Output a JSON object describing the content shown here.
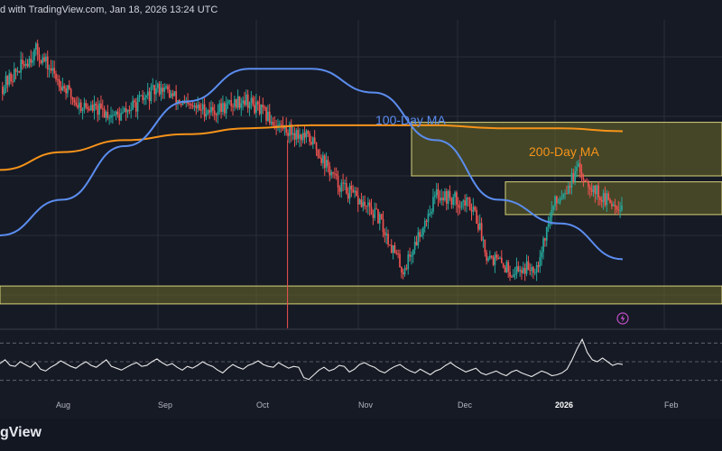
{
  "header": {
    "text": "d with TradingView.com, Jan 18, 2026 13:24 UTC"
  },
  "footer": {
    "logo_text": "gView"
  },
  "colors": {
    "background": "#161a25",
    "bull": "#26a69a",
    "bear": "#ef5350",
    "ma100": "#5b8def",
    "ma200": "#f7931a",
    "zone_fill": "#6b6b2a",
    "zone_stroke": "#d8d27a",
    "rsi_line": "#e8e8e8",
    "grid": "#2a2e39"
  },
  "icons": {
    "lightning": "lightning-icon"
  },
  "chart_data": [
    {
      "type": "candlestick",
      "x_axis": [
        "Aug",
        "Sep",
        "Oct",
        "Nov",
        "Dec",
        "2026",
        "Feb"
      ],
      "annotations": [
        "100-Day MA",
        "200-Day MA"
      ],
      "series": [
        {
          "name": "100-Day MA",
          "values": [
            0.3,
            0.42,
            0.6,
            0.75,
            0.86,
            0.86,
            0.78,
            0.62,
            0.42,
            0.34,
            0.22
          ]
        },
        {
          "name": "200-Day MA",
          "values": [
            0.52,
            0.58,
            0.62,
            0.64,
            0.66,
            0.67,
            0.67,
            0.67,
            0.66,
            0.66,
            0.65
          ]
        }
      ],
      "zones": [
        {
          "label": "upper",
          "low": 0.5,
          "high": 0.68,
          "from": 0.57,
          "to": 1.0
        },
        {
          "label": "middle",
          "low": 0.37,
          "high": 0.48,
          "from": 0.7,
          "to": 1.0
        },
        {
          "label": "lower",
          "low": 0.07,
          "high": 0.13,
          "from": 0.0,
          "to": 1.0
        }
      ]
    },
    {
      "type": "line",
      "series": [
        {
          "values": [
            48,
            52,
            46,
            45,
            50,
            47,
            44,
            49,
            42,
            40,
            44,
            47,
            51,
            48,
            45,
            43,
            47,
            50,
            46,
            44,
            48,
            52,
            45,
            43,
            41,
            44,
            47,
            49,
            45,
            46,
            50,
            53,
            49,
            46,
            48,
            44,
            41,
            45,
            43,
            46,
            50,
            47,
            45,
            41,
            38,
            43,
            47,
            44,
            42,
            46,
            48,
            51,
            47,
            45,
            44,
            49,
            46,
            43,
            45,
            44,
            33,
            31,
            36,
            41,
            44,
            40,
            42,
            46,
            45,
            39,
            42,
            47,
            49,
            46,
            44,
            40,
            38,
            42,
            45,
            47,
            43,
            40,
            38,
            42,
            39,
            36,
            40,
            42,
            46,
            49,
            45,
            42,
            39,
            41,
            43,
            38,
            36,
            38,
            40,
            37,
            35,
            39,
            41,
            38,
            36,
            34,
            37,
            40,
            38,
            35,
            36,
            38,
            42,
            52,
            64,
            74,
            60,
            52,
            50,
            54,
            50,
            46,
            48,
            47
          ]
        }
      ],
      "levels": [
        70,
        50,
        30
      ]
    }
  ]
}
